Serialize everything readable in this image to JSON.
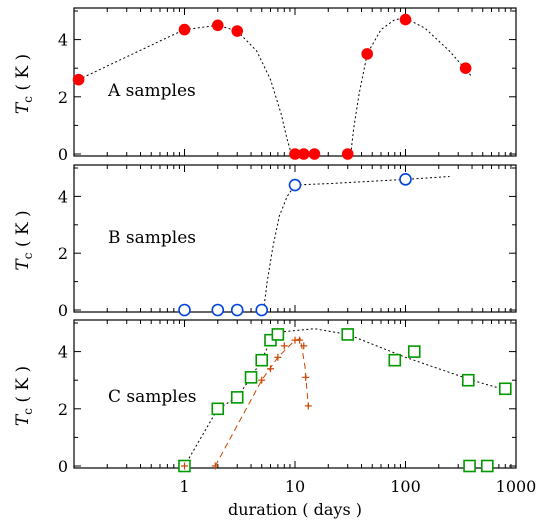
{
  "chart_data": {
    "type": "scatter",
    "xlabel": "duration ( days )",
    "x_scale": "log",
    "xlim": [
      0.1,
      1000
    ],
    "x_ticks": [
      "1",
      "10",
      "100",
      "1000"
    ],
    "shared_x_axis": true,
    "panels": [
      {
        "id": "A",
        "label": "A samples",
        "ylabel_main": "T",
        "ylabel_sub": "c",
        "ylabel_unit": "( K )",
        "ylim": [
          0,
          5
        ],
        "y_ticks": [
          "0",
          "2",
          "4"
        ],
        "series": [
          {
            "marker": "filled-circle",
            "color": "#ff0000",
            "points": [
              [
                0.11,
                2.6
              ],
              [
                1,
                4.35
              ],
              [
                2,
                4.5
              ],
              [
                3,
                4.3
              ],
              [
                10,
                0
              ],
              [
                12,
                0
              ],
              [
                15,
                0
              ],
              [
                30,
                0
              ],
              [
                45,
                3.5
              ],
              [
                100,
                4.7
              ],
              [
                350,
                3.0
              ]
            ]
          }
        ],
        "guides": [
          [
            [
              0.11,
              2.6
            ],
            [
              0.3,
              3.4
            ],
            [
              0.6,
              3.95
            ],
            [
              1,
              4.35
            ],
            [
              2,
              4.5
            ],
            [
              3,
              4.3
            ],
            [
              4.5,
              3.6
            ],
            [
              6,
              2.6
            ],
            [
              7.5,
              1.4
            ],
            [
              8.5,
              0.5
            ],
            [
              9.3,
              0
            ]
          ],
          [
            [
              32,
              0
            ],
            [
              34,
              0.9
            ],
            [
              38,
              2.1
            ],
            [
              45,
              3.5
            ],
            [
              60,
              4.35
            ],
            [
              80,
              4.7
            ],
            [
              100,
              4.75
            ],
            [
              150,
              4.4
            ],
            [
              250,
              3.6
            ],
            [
              400,
              2.7
            ]
          ]
        ]
      },
      {
        "id": "B",
        "label": "B samples",
        "ylabel_main": "T",
        "ylabel_sub": "c",
        "ylabel_unit": "( K )",
        "ylim": [
          0,
          5
        ],
        "y_ticks": [
          "0",
          "2",
          "4"
        ],
        "series": [
          {
            "marker": "open-circle",
            "color": "#0044dd",
            "points": [
              [
                1,
                0
              ],
              [
                2,
                0
              ],
              [
                3,
                0
              ],
              [
                5,
                0
              ],
              [
                10,
                4.4
              ],
              [
                100,
                4.6
              ]
            ]
          }
        ],
        "guides": [
          [
            [
              5.2,
              0
            ],
            [
              5.6,
              1.0
            ],
            [
              6.3,
              2.2
            ],
            [
              7.2,
              3.3
            ],
            [
              8.5,
              4.0
            ],
            [
              10,
              4.4
            ],
            [
              20,
              4.45
            ],
            [
              100,
              4.6
            ],
            [
              250,
              4.7
            ]
          ]
        ]
      },
      {
        "id": "C",
        "label": "C samples",
        "ylabel_main": "T",
        "ylabel_sub": "c",
        "ylabel_unit": "( K )",
        "ylim": [
          0,
          5
        ],
        "y_ticks": [
          "0",
          "2",
          "4"
        ],
        "series": [
          {
            "marker": "open-square",
            "color": "#009900",
            "points": [
              [
                1,
                0
              ],
              [
                2,
                2.0
              ],
              [
                3,
                2.4
              ],
              [
                4,
                3.1
              ],
              [
                5,
                3.7
              ],
              [
                6,
                4.4
              ],
              [
                7,
                4.6
              ],
              [
                30,
                4.6
              ],
              [
                80,
                3.7
              ],
              [
                120,
                4.0
              ],
              [
                370,
                3.0
              ],
              [
                380,
                0
              ],
              [
                550,
                0
              ],
              [
                800,
                2.7
              ]
            ]
          },
          {
            "marker": "plus",
            "color": "#cc4400",
            "points": [
              [
                1,
                0
              ],
              [
                1.9,
                0
              ],
              [
                5,
                3.0
              ],
              [
                6,
                3.4
              ],
              [
                7,
                3.8
              ],
              [
                8,
                4.2
              ],
              [
                10,
                4.4
              ],
              [
                11,
                4.4
              ],
              [
                12,
                4.2
              ],
              [
                12.5,
                3.1
              ],
              [
                13.2,
                2.1
              ]
            ]
          }
        ],
        "guides": [
          [
            [
              1,
              0
            ],
            [
              2,
              2.0
            ],
            [
              3,
              2.4
            ],
            [
              4,
              3.1
            ],
            [
              5,
              3.7
            ],
            [
              6,
              4.4
            ],
            [
              8,
              4.7
            ],
            [
              15,
              4.8
            ],
            [
              30,
              4.6
            ],
            [
              100,
              3.8
            ],
            [
              400,
              3.0
            ],
            [
              900,
              2.6
            ]
          ]
        ],
        "dashed_guides": [
          [
            [
              1.9,
              0
            ],
            [
              5,
              3.0
            ],
            [
              7,
              3.8
            ],
            [
              10,
              4.4
            ],
            [
              11.2,
              4.45
            ],
            [
              12.3,
              3.5
            ],
            [
              13.2,
              2.1
            ]
          ]
        ]
      }
    ]
  }
}
